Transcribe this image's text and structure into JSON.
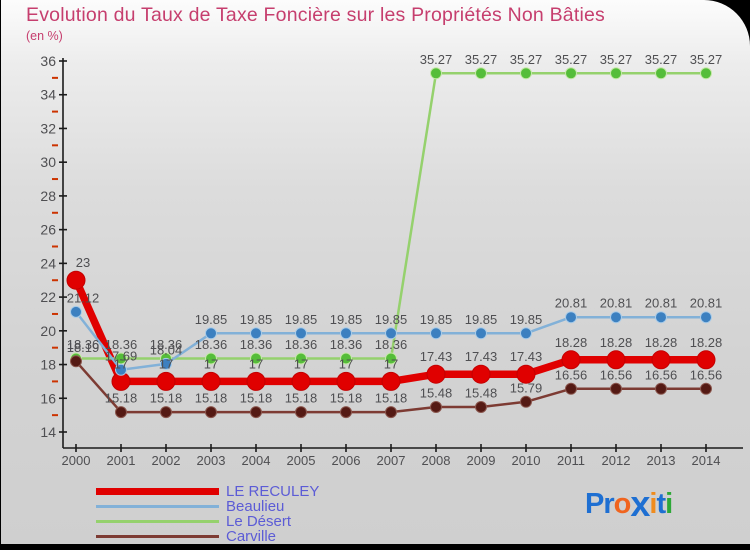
{
  "chart_data": {
    "type": "line",
    "title": "Evolution du Taux de Taxe Foncière sur les Propriétés Non Bâties",
    "subtitle": "(en %)",
    "x": [
      2000,
      2001,
      2002,
      2003,
      2004,
      2005,
      2006,
      2007,
      2008,
      2009,
      2010,
      2011,
      2012,
      2013,
      2014
    ],
    "ylim": [
      14,
      36
    ],
    "ytick_major_step": 2,
    "grid": false,
    "legend_position": "bottom-left",
    "draw_order": [
      0,
      2,
      3,
      1
    ],
    "colors": {
      "title": "#c63e6e",
      "axis": "#1b1b1b",
      "tick_label": "#4f4f52",
      "data_label": "#4f4f52",
      "minor_tick": "#cc3300"
    },
    "series": [
      {
        "name": "LE RECULEY",
        "line_color": "#e00000",
        "dot_color": "#e00000",
        "dot_stroke": "#c40000",
        "line_width": 7.5,
        "dot_radius": 9,
        "values": [
          23,
          17,
          17,
          17,
          17,
          17,
          17,
          17,
          17.43,
          17.43,
          17.43,
          18.28,
          18.28,
          18.28,
          18.28
        ]
      },
      {
        "name": "Beaulieu",
        "line_color": "#82b1d8",
        "dot_color": "#3c80c0",
        "dot_stroke": "#a8cbe8",
        "line_width": 2.5,
        "dot_radius": 5.5,
        "values": [
          21.12,
          17.69,
          18.04,
          19.85,
          19.85,
          19.85,
          19.85,
          19.85,
          19.85,
          19.85,
          19.85,
          20.81,
          20.81,
          20.81,
          20.81
        ]
      },
      {
        "name": "Le Désert",
        "line_color": "#95d16d",
        "dot_color": "#55bd39",
        "dot_stroke": "#c4e8a6",
        "line_width": 2.5,
        "dot_radius": 5.5,
        "values": [
          18.36,
          18.36,
          18.36,
          18.36,
          18.36,
          18.36,
          18.36,
          18.36,
          35.27,
          35.27,
          35.27,
          35.27,
          35.27,
          35.27,
          35.27
        ]
      },
      {
        "name": "Carville",
        "line_color": "#7d3b33",
        "dot_color": "#551a14",
        "dot_stroke": "#8a564d",
        "line_width": 2.5,
        "dot_radius": 5.5,
        "values": [
          18.19,
          15.18,
          15.18,
          15.18,
          15.18,
          15.18,
          15.18,
          15.18,
          15.48,
          15.48,
          15.79,
          16.56,
          16.56,
          16.56,
          16.56
        ]
      }
    ]
  },
  "logo": {
    "text": "Proxiti",
    "letters": [
      {
        "ch": "P",
        "color": "#1e6fd2",
        "big": false
      },
      {
        "ch": "r",
        "color": "#1e6fd2",
        "big": false
      },
      {
        "ch": "o",
        "color": "#f0641e",
        "big": false
      },
      {
        "ch": "x",
        "color": "#1e6fd2",
        "big": true
      },
      {
        "ch": "i",
        "color": "#f08c1e",
        "big": false
      },
      {
        "ch": "t",
        "color": "#1e6fd2",
        "big": false
      },
      {
        "ch": "i",
        "color": "#2ea838",
        "big": false
      }
    ]
  }
}
